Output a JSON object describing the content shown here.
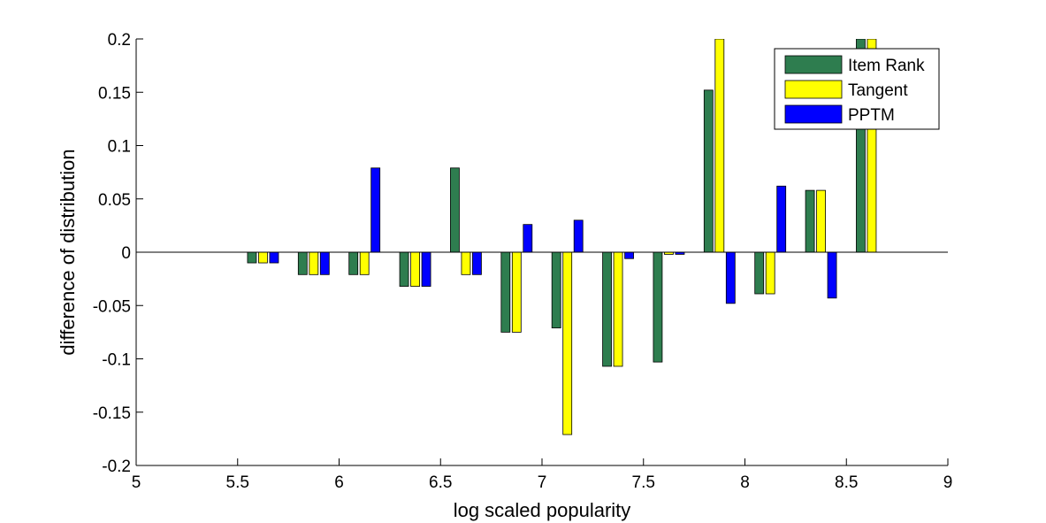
{
  "chart_data": {
    "type": "bar",
    "title": "",
    "xlabel": "log scaled popularity",
    "ylabel": "difference of distribution",
    "xlim": [
      5,
      9
    ],
    "ylim": [
      -0.2,
      0.2
    ],
    "xticks": [
      "5",
      "5.5",
      "6",
      "6.5",
      "7",
      "7.5",
      "8",
      "8.5",
      "9"
    ],
    "yticks": [
      "0.2",
      "0.15",
      "0.1",
      "0.05",
      "0",
      "-0.05",
      "-0.1",
      "-0.15",
      "-0.2"
    ],
    "x": [
      5.625,
      5.875,
      6.125,
      6.375,
      6.625,
      6.875,
      7.125,
      7.375,
      7.625,
      7.875,
      8.125,
      8.375,
      8.625
    ],
    "series": [
      {
        "name": "Item Rank",
        "color": "#2e7d4f",
        "values": [
          -0.01,
          -0.021,
          -0.021,
          -0.032,
          0.079,
          -0.075,
          -0.071,
          -0.107,
          -0.103,
          0.152,
          -0.039,
          0.058,
          0.2
        ]
      },
      {
        "name": "Tangent",
        "color": "#ffff00",
        "values": [
          -0.01,
          -0.021,
          -0.021,
          -0.032,
          -0.021,
          -0.075,
          -0.171,
          -0.107,
          -0.002,
          0.2,
          -0.039,
          0.058,
          0.2
        ]
      },
      {
        "name": "PPTM",
        "color": "#0000ff",
        "values": [
          -0.01,
          -0.021,
          0.079,
          -0.032,
          -0.021,
          0.026,
          0.03,
          -0.006,
          -0.002,
          -0.048,
          0.062,
          -0.043,
          null
        ]
      }
    ],
    "legend_position": "top-right",
    "grid": false
  }
}
